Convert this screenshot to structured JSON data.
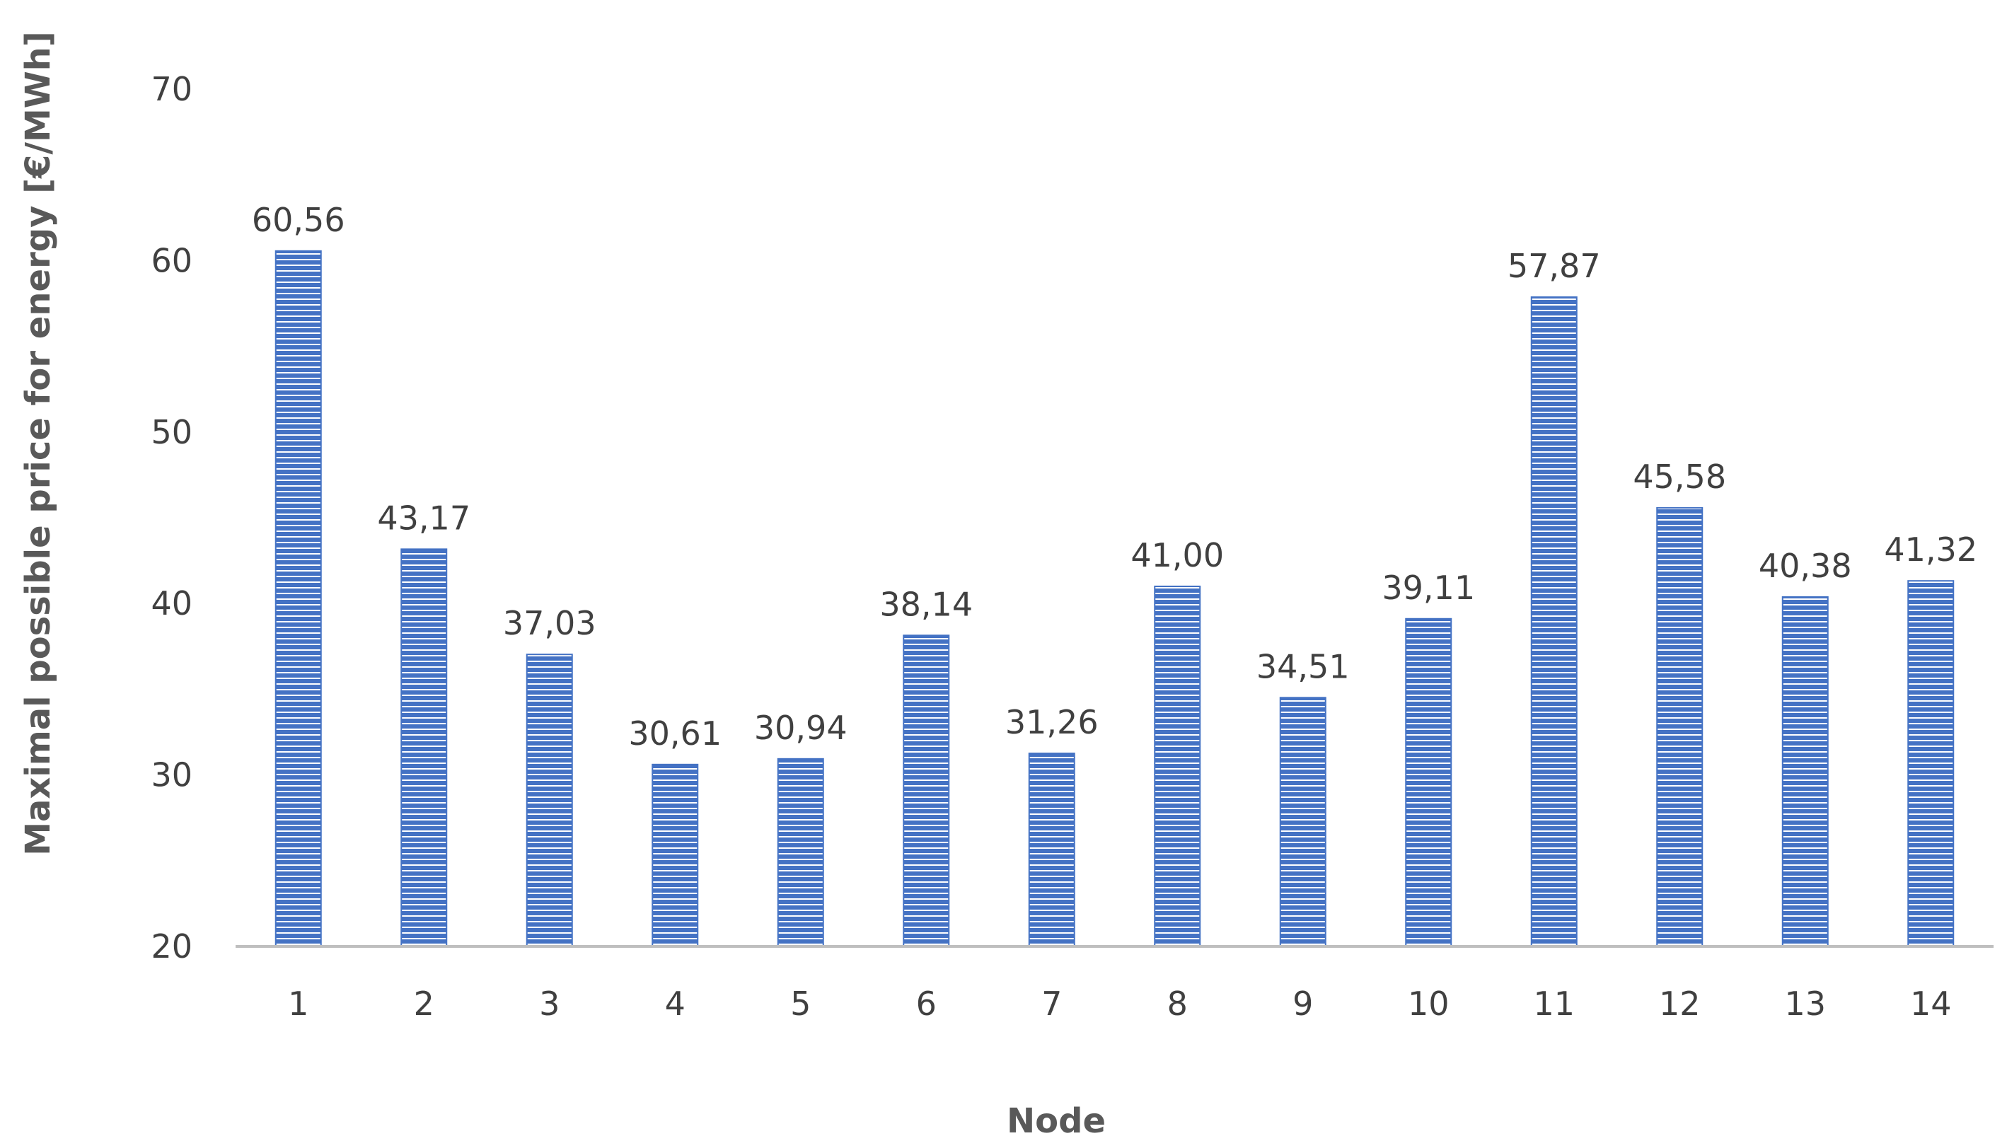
{
  "chart_data": {
    "type": "bar",
    "categories": [
      "1",
      "2",
      "3",
      "4",
      "5",
      "6",
      "7",
      "8",
      "9",
      "10",
      "11",
      "12",
      "13",
      "14"
    ],
    "values": [
      60.56,
      43.17,
      37.03,
      30.61,
      30.94,
      38.14,
      31.26,
      41.0,
      34.51,
      39.11,
      57.87,
      45.58,
      40.38,
      41.32
    ],
    "value_labels": [
      "60,56",
      "43,17",
      "37,03",
      "30,61",
      "30,94",
      "38,14",
      "31,26",
      "41,00",
      "34,51",
      "39,11",
      "57,87",
      "45,58",
      "40,38",
      "41,32"
    ],
    "title": "",
    "xlabel": "Node",
    "ylabel": "Maximal possible price for energy  [€/MWh]",
    "ylim": [
      20,
      70
    ],
    "yticks": [
      20,
      30,
      40,
      50,
      60,
      70
    ],
    "grid": false,
    "legend": "none",
    "colors": {
      "bar_fill": "#4472c4",
      "bar_stripe": "#ffffff",
      "axis_line": "#bfbfbf"
    }
  }
}
